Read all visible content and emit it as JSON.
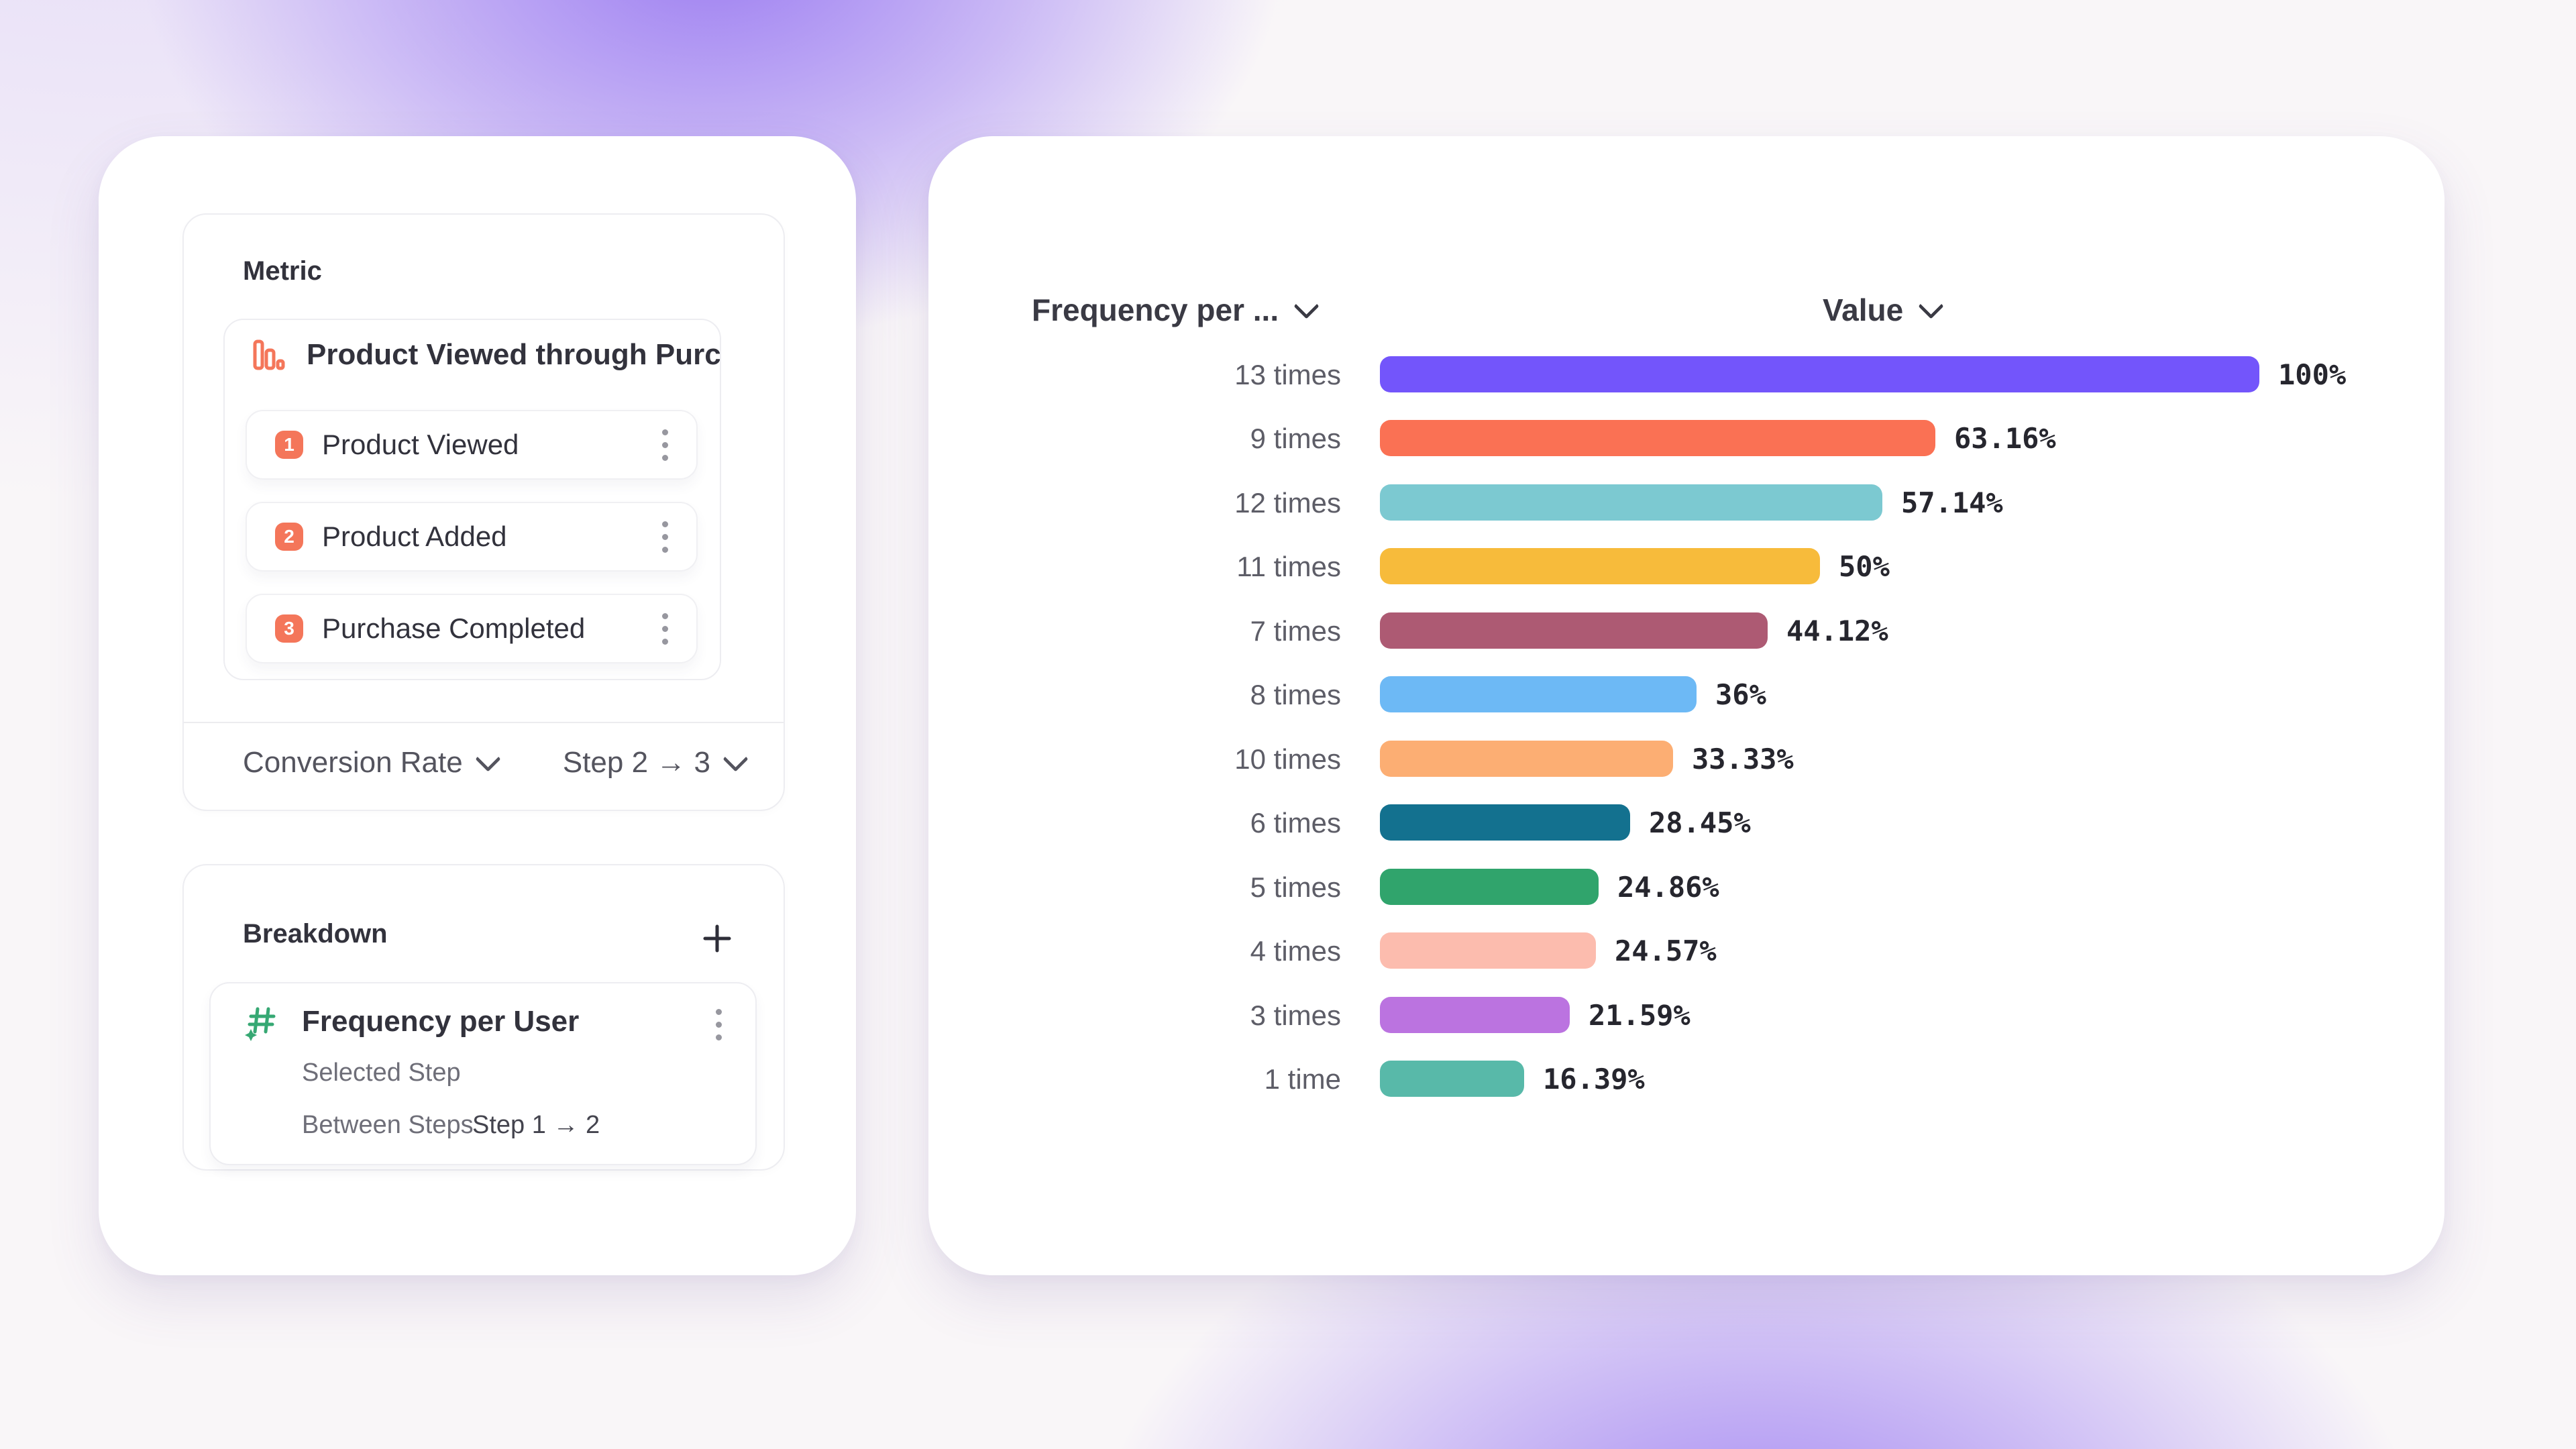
{
  "left_panel": {
    "metric_card": {
      "title": "Metric",
      "funnel": {
        "name": "Product Viewed through Purch...",
        "steps": [
          {
            "index": "1",
            "label": "Product Viewed"
          },
          {
            "index": "2",
            "label": "Product Added"
          },
          {
            "index": "3",
            "label": "Purchase Completed"
          }
        ],
        "badge_color": "#f4765a"
      },
      "measure_label": "Conversion Rate",
      "step_range_label": "Step 2 → 3"
    },
    "breakdown_card": {
      "title": "Breakdown",
      "item": {
        "name": "Frequency per User",
        "selected_step_label": "Selected Step",
        "between_steps_label": "Between Steps",
        "between_steps_value": "Step 1 → 2"
      }
    }
  },
  "chart": {
    "category_header": "Frequency per ...",
    "value_header": "Value"
  },
  "chart_data": {
    "type": "bar",
    "orientation": "horizontal",
    "title": "",
    "xlabel": "Value",
    "ylabel": "Frequency per ...",
    "xlim": [
      0,
      100
    ],
    "grid": false,
    "legend": "none",
    "categories": [
      "13 times",
      "9 times",
      "12 times",
      "11 times",
      "7 times",
      "8 times",
      "10 times",
      "6 times",
      "5 times",
      "4 times",
      "3 times",
      "1 time"
    ],
    "values": [
      100,
      63.16,
      57.14,
      50,
      44.12,
      36,
      33.33,
      28.45,
      24.86,
      24.57,
      21.59,
      16.39
    ],
    "value_labels": [
      "100%",
      "63.16%",
      "57.14%",
      "50%",
      "44.12%",
      "36%",
      "33.33%",
      "28.45%",
      "24.86%",
      "24.57%",
      "21.59%",
      "16.39%"
    ],
    "bar_colors": [
      "#7355fb",
      "#fa7154",
      "#7cc9d1",
      "#f7bb3b",
      "#ad5a73",
      "#6db9f5",
      "#fcae73",
      "#13718f",
      "#30a46c",
      "#fcbcae",
      "#bb73e0",
      "#58b9a9"
    ]
  },
  "icons": {
    "funnel_icon": "descending-bar-chart",
    "kebab_icon": "vertical-three-dots-menu",
    "chevron_icon": "chevron-down",
    "plus_icon": "plus",
    "hash_icon": "hash-with-sparkle"
  },
  "colors": {
    "accent_orange": "#f4765a",
    "accent_green": "#36a873",
    "text_dark": "#32323c",
    "text_gray": "#6e6e78",
    "background_glow": "#9878f1"
  }
}
